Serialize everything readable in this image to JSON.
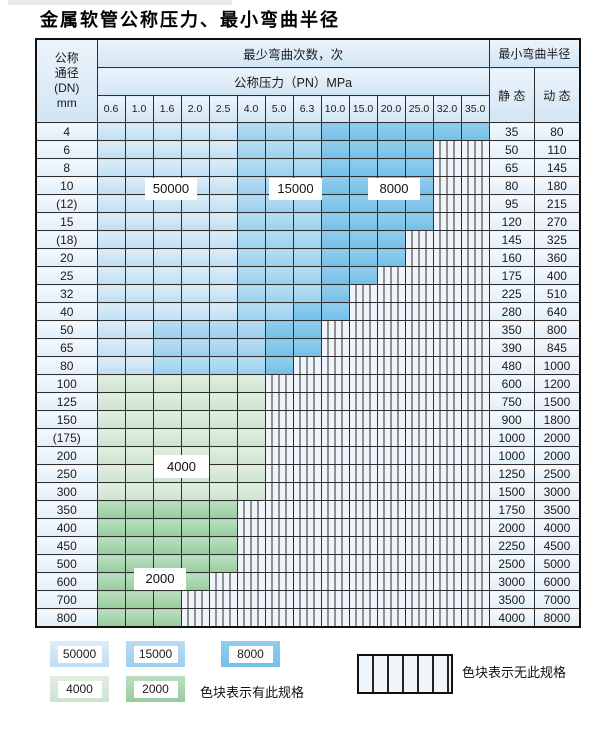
{
  "title": "金属软管公称压力、最小弯曲半径",
  "table": {
    "header": {
      "dn_lines": [
        "公称",
        "通径",
        "(DN)",
        "mm"
      ],
      "bend_cycles": "最少弯曲次数，次",
      "pressure": "公称压力（PN）MPa",
      "bend_radius": "最小弯曲半径",
      "static_label": "静 态",
      "dynamic_label": "动 态",
      "pn_values": [
        "0.6",
        "1.0",
        "1.6",
        "2.0",
        "2.5",
        "4.0",
        "5.0",
        "6.3",
        "10.0",
        "15.0",
        "20.0",
        "25.0",
        "32.0",
        "35.0"
      ]
    },
    "rows": [
      {
        "dn": "4",
        "zones": [
          [
            "v50000",
            5
          ],
          [
            "v15000",
            3
          ],
          [
            "v8000",
            6
          ]
        ],
        "static": "35",
        "dynamic": "80"
      },
      {
        "dn": "6",
        "zones": [
          [
            "v50000",
            5
          ],
          [
            "v15000",
            3
          ],
          [
            "v8000",
            4
          ]
        ],
        "static": "50",
        "dynamic": "110"
      },
      {
        "dn": "8",
        "zones": [
          [
            "v50000",
            5
          ],
          [
            "v15000",
            3
          ],
          [
            "v8000",
            4
          ]
        ],
        "static": "65",
        "dynamic": "145"
      },
      {
        "dn": "10",
        "zones": [
          [
            "v50000",
            5
          ],
          [
            "v15000",
            3
          ],
          [
            "v8000",
            4
          ]
        ],
        "static": "80",
        "dynamic": "180"
      },
      {
        "dn": "(12)",
        "zones": [
          [
            "v50000",
            5
          ],
          [
            "v15000",
            3
          ],
          [
            "v8000",
            4
          ]
        ],
        "static": "95",
        "dynamic": "215"
      },
      {
        "dn": "15",
        "zones": [
          [
            "v50000",
            5
          ],
          [
            "v15000",
            3
          ],
          [
            "v8000",
            4
          ]
        ],
        "static": "120",
        "dynamic": "270"
      },
      {
        "dn": "(18)",
        "zones": [
          [
            "v50000",
            5
          ],
          [
            "v15000",
            3
          ],
          [
            "v8000",
            3
          ]
        ],
        "static": "145",
        "dynamic": "325"
      },
      {
        "dn": "20",
        "zones": [
          [
            "v50000",
            5
          ],
          [
            "v15000",
            3
          ],
          [
            "v8000",
            3
          ]
        ],
        "static": "160",
        "dynamic": "360"
      },
      {
        "dn": "25",
        "zones": [
          [
            "v50000",
            5
          ],
          [
            "v15000",
            3
          ],
          [
            "v8000",
            2
          ]
        ],
        "static": "175",
        "dynamic": "400"
      },
      {
        "dn": "32",
        "zones": [
          [
            "v50000",
            5
          ],
          [
            "v15000",
            3
          ],
          [
            "v8000",
            1
          ]
        ],
        "static": "225",
        "dynamic": "510"
      },
      {
        "dn": "40",
        "zones": [
          [
            "v50000",
            5
          ],
          [
            "v15000",
            2
          ],
          [
            "v8000",
            2
          ]
        ],
        "static": "280",
        "dynamic": "640"
      },
      {
        "dn": "50",
        "zones": [
          [
            "v50000",
            2
          ],
          [
            "v15000",
            4
          ],
          [
            "v8000",
            2
          ]
        ],
        "static": "350",
        "dynamic": "800"
      },
      {
        "dn": "65",
        "zones": [
          [
            "v50000",
            2
          ],
          [
            "v15000",
            4
          ],
          [
            "v8000",
            2
          ]
        ],
        "static": "390",
        "dynamic": "845"
      },
      {
        "dn": "80",
        "zones": [
          [
            "v50000",
            2
          ],
          [
            "v15000",
            4
          ],
          [
            "v8000",
            1
          ]
        ],
        "static": "480",
        "dynamic": "1000"
      },
      {
        "dn": "100",
        "zones": [
          [
            "v4000",
            6
          ]
        ],
        "static": "600",
        "dynamic": "1200"
      },
      {
        "dn": "125",
        "zones": [
          [
            "v4000",
            6
          ]
        ],
        "static": "750",
        "dynamic": "1500"
      },
      {
        "dn": "150",
        "zones": [
          [
            "v4000",
            6
          ]
        ],
        "static": "900",
        "dynamic": "1800"
      },
      {
        "dn": "(175)",
        "zones": [
          [
            "v4000",
            6
          ]
        ],
        "static": "1000",
        "dynamic": "2000"
      },
      {
        "dn": "200",
        "zones": [
          [
            "v4000",
            6
          ]
        ],
        "static": "1000",
        "dynamic": "2000"
      },
      {
        "dn": "250",
        "zones": [
          [
            "v4000",
            6
          ]
        ],
        "static": "1250",
        "dynamic": "2500"
      },
      {
        "dn": "300",
        "zones": [
          [
            "v4000",
            6
          ]
        ],
        "static": "1500",
        "dynamic": "3000"
      },
      {
        "dn": "350",
        "zones": [
          [
            "v2000",
            5
          ]
        ],
        "static": "1750",
        "dynamic": "3500"
      },
      {
        "dn": "400",
        "zones": [
          [
            "v2000",
            5
          ]
        ],
        "static": "2000",
        "dynamic": "4000"
      },
      {
        "dn": "450",
        "zones": [
          [
            "v2000",
            5
          ]
        ],
        "static": "2250",
        "dynamic": "4500"
      },
      {
        "dn": "500",
        "zones": [
          [
            "v2000",
            5
          ]
        ],
        "static": "2500",
        "dynamic": "5000"
      },
      {
        "dn": "600",
        "zones": [
          [
            "v2000",
            4
          ]
        ],
        "static": "3000",
        "dynamic": "6000"
      },
      {
        "dn": "700",
        "zones": [
          [
            "v2000",
            3
          ]
        ],
        "static": "3500",
        "dynamic": "7000"
      },
      {
        "dn": "800",
        "zones": [
          [
            "v2000",
            3
          ]
        ],
        "static": "4000",
        "dynamic": "8000"
      }
    ],
    "num_pressure_columns": 14
  },
  "overlays": [
    "50000",
    "15000",
    "8000",
    "4000",
    "2000"
  ],
  "legend": {
    "swatches": [
      {
        "label": "50000",
        "class": "v50000"
      },
      {
        "label": "15000",
        "class": "v15000"
      },
      {
        "label": "8000",
        "class": "v8000"
      },
      {
        "label": "4000",
        "class": "v4000"
      },
      {
        "label": "2000",
        "class": "v2000"
      }
    ],
    "has_spec_text": "色块表示有此规格",
    "no_spec_text": "色块表示无此规格"
  },
  "colors": {
    "cycles_50000": "#cde5f6",
    "cycles_15000": "#a9d6f1",
    "cycles_8000": "#84c6ea",
    "cycles_4000": "#d7e9d8",
    "cycles_2000": "#a8d4ae",
    "hatch_bg": "#eff5fb",
    "grid": "#2e2e2e"
  }
}
